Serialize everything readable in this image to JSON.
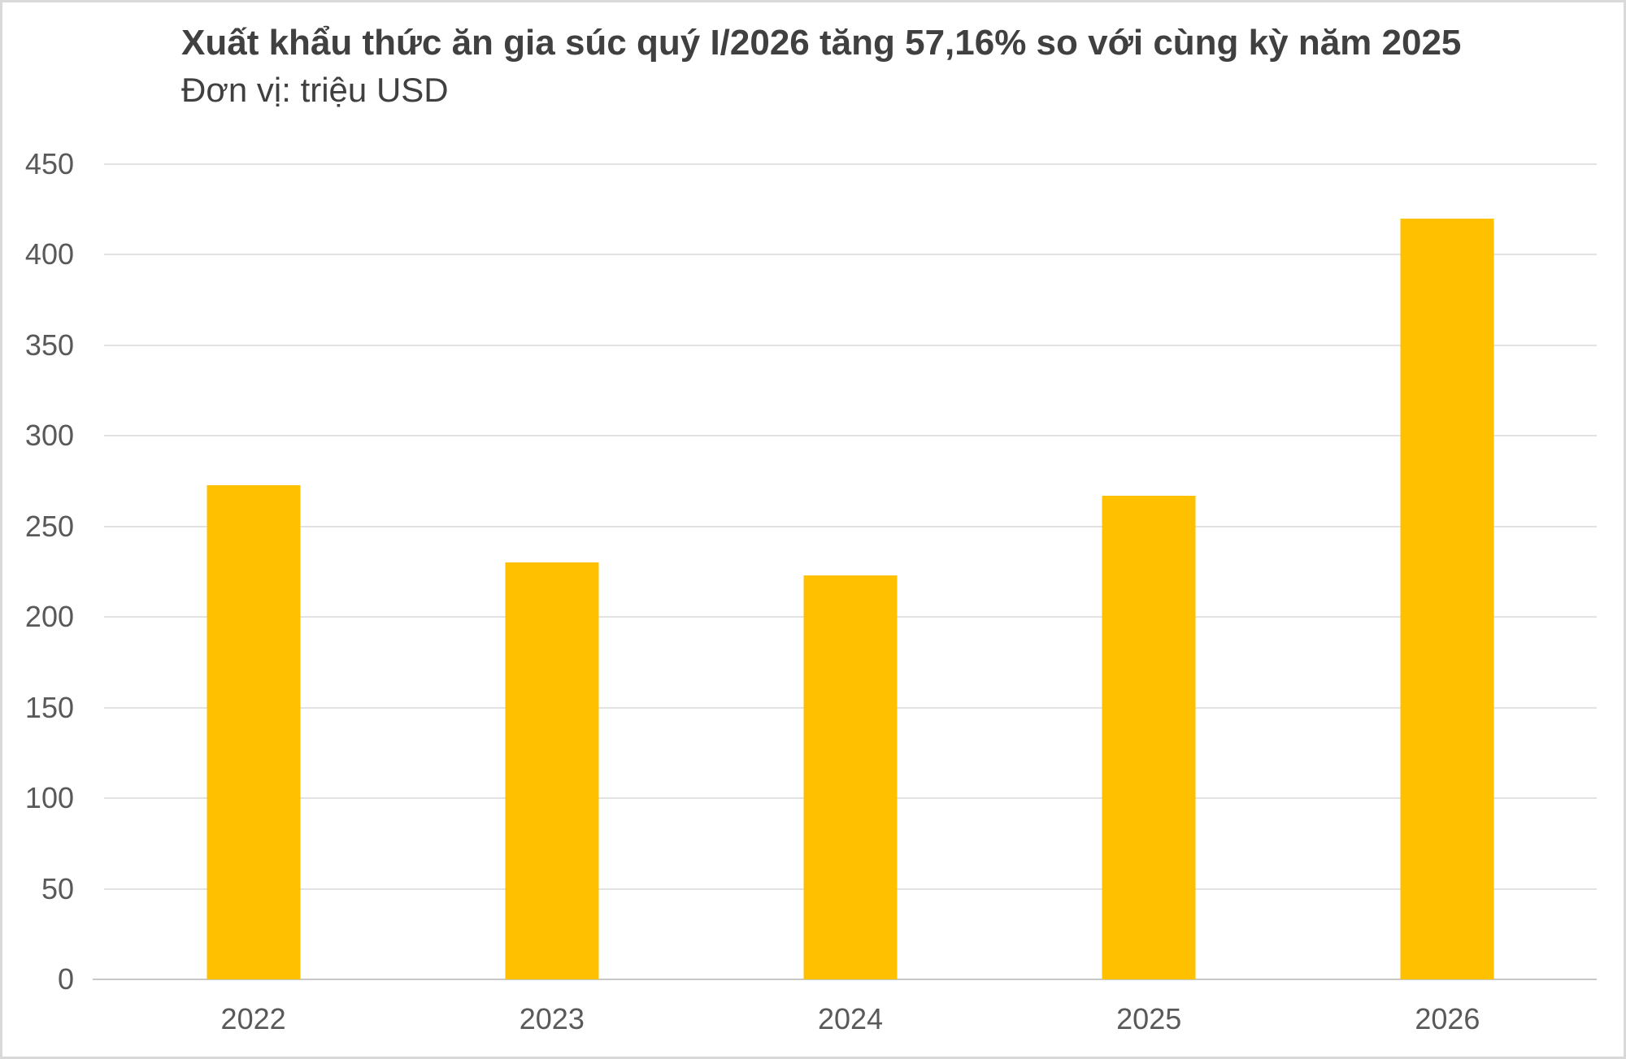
{
  "chart_data": {
    "type": "bar",
    "title": "Xuất khẩu thức ăn gia súc quý I/2026 tăng 57,16% so với cùng kỳ năm 2025",
    "subtitle": "Đơn vị: triệu USD",
    "categories": [
      "2022",
      "2023",
      "2024",
      "2025",
      "2026"
    ],
    "values": [
      273,
      230,
      223,
      267,
      420
    ],
    "xlabel": "",
    "ylabel": "",
    "ylim": [
      0,
      450
    ],
    "ytick_step": 50,
    "grid": true,
    "legend": false
  },
  "colors": {
    "bar": "#FFC000",
    "title_text": "#404040",
    "axis_text": "#595959",
    "gridline": "#E2E2E2",
    "baseline": "#C8C8C8",
    "border": "#D9D9D9",
    "background": "#FFFFFF"
  }
}
